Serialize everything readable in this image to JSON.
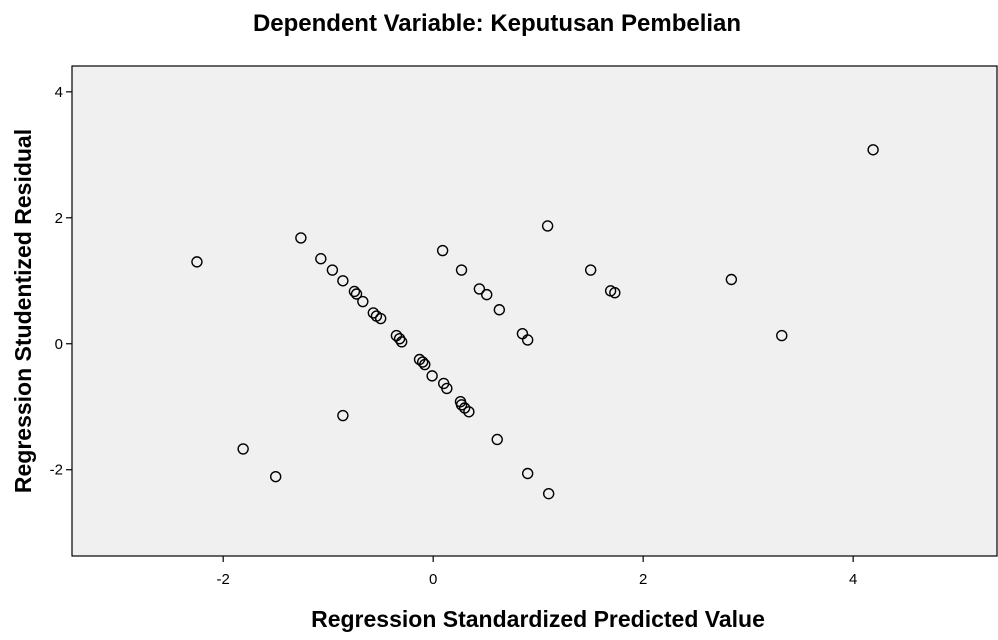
{
  "chart_data": {
    "type": "scatter",
    "title": "Dependent Variable: Keputusan Pembelian",
    "x_label": "Regression Standardized Predicted Value",
    "y_label": "Regression Studentized Residual",
    "xlim": [
      -3.44,
      5.37
    ],
    "ylim": [
      -3.37,
      4.41
    ],
    "xticks": [
      -2,
      0,
      2,
      4
    ],
    "yticks": [
      -2,
      0,
      2,
      4
    ],
    "color": "#000000",
    "background": "#f0f0f0",
    "x": [
      -2.25,
      -1.81,
      -1.5,
      -1.26,
      -1.07,
      -0.96,
      -0.86,
      -0.86,
      -0.75,
      -0.73,
      -0.67,
      -0.57,
      -0.54,
      -0.5,
      -0.35,
      -0.32,
      -0.3,
      -0.13,
      -0.1,
      -0.08,
      -0.01,
      0.09,
      0.1,
      0.13,
      0.26,
      0.27,
      0.3,
      0.34,
      0.27,
      0.44,
      0.51,
      0.61,
      0.63,
      0.85,
      0.9,
      0.9,
      1.09,
      1.1,
      1.5,
      1.69,
      1.73,
      2.84,
      3.32,
      4.19
    ],
    "y": [
      1.3,
      -1.67,
      -2.11,
      1.68,
      1.35,
      1.17,
      1.0,
      -1.14,
      0.83,
      0.79,
      0.67,
      0.49,
      0.44,
      0.4,
      0.13,
      0.08,
      0.03,
      -0.25,
      -0.29,
      -0.33,
      -0.51,
      1.48,
      -0.63,
      -0.71,
      -0.92,
      -0.97,
      -1.02,
      -1.08,
      1.17,
      0.87,
      0.78,
      -1.52,
      0.54,
      0.16,
      0.06,
      -2.06,
      1.87,
      -2.38,
      1.17,
      0.84,
      0.81,
      1.02,
      0.13,
      3.08
    ]
  }
}
